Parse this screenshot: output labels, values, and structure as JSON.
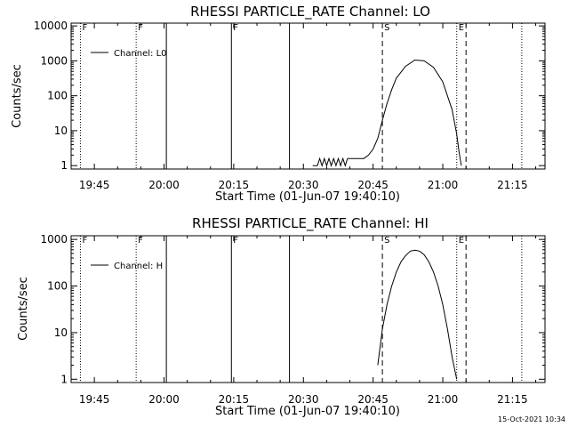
{
  "footer": {
    "timestamp": "15-Oct-2021 10:34"
  },
  "chart_data": [
    {
      "type": "line",
      "title": "RHESSI PARTICLE_RATE Channel: LO",
      "xlabel": "Start Time (01-Jun-07 19:40:10)",
      "ylabel": "Counts/sec",
      "yscale": "log",
      "xlim": [
        "19:40",
        "21:22"
      ],
      "ylim": [
        0.8,
        12000
      ],
      "x_ticks": [
        "19:45",
        "20:00",
        "20:15",
        "20:30",
        "20:45",
        "21:00",
        "21:15"
      ],
      "y_ticks": [
        "1",
        "10",
        "100",
        "1000",
        "10000"
      ],
      "legend_position": "top-left",
      "series": [
        {
          "name": "Channel: L0",
          "color": "#000000",
          "x": [
            "20:32",
            "20:33",
            "20:33.5",
            "20:34",
            "20:34.5",
            "20:35",
            "20:35.5",
            "20:36",
            "20:36.5",
            "20:37",
            "20:37.5",
            "20:38",
            "20:38.5",
            "20:39",
            "20:39.5",
            "20:40",
            "20:41",
            "20:42",
            "20:43",
            "20:44",
            "20:45",
            "20:46",
            "20:47",
            "20:48",
            "20:49",
            "20:50",
            "20:52",
            "20:54",
            "20:56",
            "20:58",
            "21:00",
            "21:02",
            "21:03",
            "21:03.5",
            "21:04"
          ],
          "y": [
            1,
            1,
            1.6,
            1,
            1.6,
            1,
            1.6,
            1,
            1.6,
            1,
            1.6,
            1,
            1.6,
            1,
            1.6,
            1.6,
            1.6,
            1.6,
            1.6,
            2,
            3,
            6,
            20,
            60,
            150,
            320,
            700,
            1050,
            1000,
            650,
            250,
            40,
            8,
            2.5,
            1
          ]
        }
      ],
      "event_markers": [
        {
          "time": "19:42",
          "label": "F",
          "style": "dotted"
        },
        {
          "time": "19:54",
          "label": "F",
          "style": "dotted"
        },
        {
          "time": "20:00.5",
          "label": "",
          "style": "solid"
        },
        {
          "time": "20:14.5",
          "label": "F",
          "style": "solid"
        },
        {
          "time": "20:27",
          "label": "",
          "style": "solid"
        },
        {
          "time": "20:47",
          "label": "S",
          "style": "dashed"
        },
        {
          "time": "21:03",
          "label": "E",
          "style": "dotted"
        },
        {
          "time": "21:05",
          "label": "",
          "style": "dashed"
        },
        {
          "time": "21:17",
          "label": "",
          "style": "dotted"
        }
      ]
    },
    {
      "type": "line",
      "title": "RHESSI PARTICLE_RATE Channel: HI",
      "xlabel": "Start Time (01-Jun-07 19:40:10)",
      "ylabel": "Counts/sec",
      "yscale": "log",
      "xlim": [
        "19:40",
        "21:22"
      ],
      "ylim": [
        0.85,
        1200
      ],
      "x_ticks": [
        "19:45",
        "20:00",
        "20:15",
        "20:30",
        "20:45",
        "21:00",
        "21:15"
      ],
      "y_ticks": [
        "1",
        "10",
        "100",
        "1000"
      ],
      "legend_position": "top-left",
      "series": [
        {
          "name": "Channel: H",
          "color": "#000000",
          "x": [
            "20:46",
            "20:47",
            "20:48",
            "20:49",
            "20:50",
            "20:51",
            "20:52",
            "20:53",
            "20:54",
            "20:55",
            "20:56",
            "20:57",
            "20:58",
            "20:59",
            "21:00",
            "21:01",
            "21:02",
            "21:03"
          ],
          "y": [
            2,
            12,
            40,
            100,
            200,
            330,
            450,
            560,
            590,
            560,
            470,
            330,
            200,
            100,
            40,
            12,
            3,
            1
          ]
        }
      ],
      "event_markers": [
        {
          "time": "19:42",
          "label": "F",
          "style": "dotted"
        },
        {
          "time": "19:54",
          "label": "F",
          "style": "dotted"
        },
        {
          "time": "20:00.5",
          "label": "",
          "style": "solid"
        },
        {
          "time": "20:14.5",
          "label": "F",
          "style": "solid"
        },
        {
          "time": "20:27",
          "label": "",
          "style": "solid"
        },
        {
          "time": "20:47",
          "label": "S",
          "style": "dashed"
        },
        {
          "time": "21:03",
          "label": "E",
          "style": "dotted"
        },
        {
          "time": "21:05",
          "label": "",
          "style": "dashed"
        },
        {
          "time": "21:17",
          "label": "",
          "style": "dotted"
        }
      ]
    }
  ]
}
